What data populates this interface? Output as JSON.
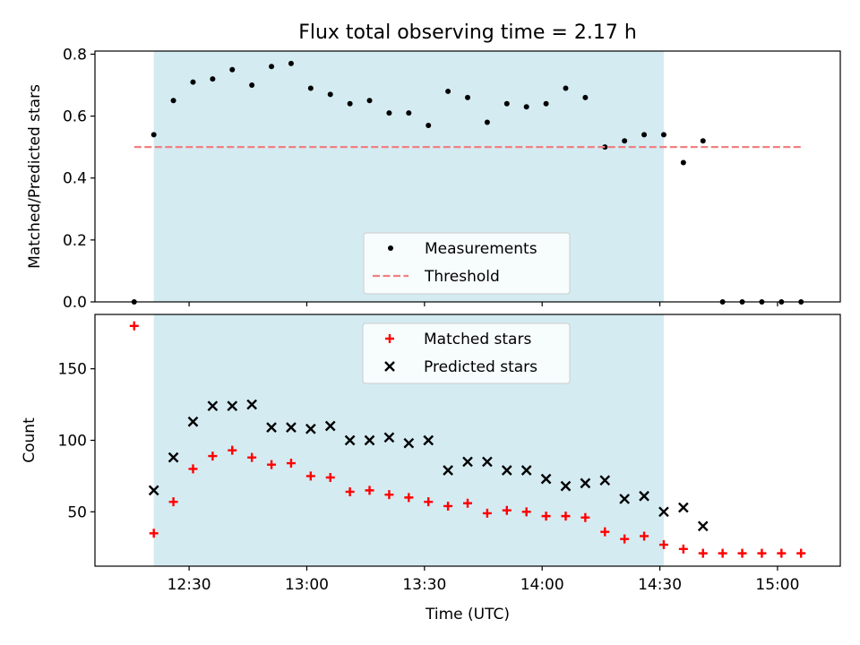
{
  "chart_data": [
    {
      "type": "scatter",
      "title": "Flux total observing time = 2.17 h",
      "xlabel": "",
      "ylabel": "Matched/Predicted stars",
      "ylim": [
        0,
        0.81
      ],
      "yticks": [
        0.0,
        0.2,
        0.4,
        0.6,
        0.8
      ],
      "ytick_labels": [
        "0.0",
        "0.2",
        "0.4",
        "0.6",
        "0.8"
      ],
      "grid": false,
      "legend_position": "lower-center",
      "shaded_interval": [
        "12:21",
        "14:31"
      ],
      "shade_color": "#add8e6",
      "series": [
        {
          "name": "Measurements",
          "marker": "dot",
          "color": "#000000",
          "x": [
            "12:16",
            "12:21",
            "12:26",
            "12:31",
            "12:36",
            "12:41",
            "12:46",
            "12:51",
            "12:56",
            "13:01",
            "13:06",
            "13:11",
            "13:16",
            "13:21",
            "13:26",
            "13:31",
            "13:36",
            "13:41",
            "13:46",
            "13:51",
            "13:56",
            "14:01",
            "14:06",
            "14:11",
            "14:16",
            "14:21",
            "14:26",
            "14:31",
            "14:36",
            "14:41",
            "14:46",
            "14:51",
            "14:56",
            "15:01",
            "15:06"
          ],
          "y": [
            0.0,
            0.54,
            0.65,
            0.71,
            0.72,
            0.75,
            0.7,
            0.76,
            0.77,
            0.69,
            0.67,
            0.64,
            0.65,
            0.61,
            0.61,
            0.57,
            0.68,
            0.66,
            0.58,
            0.64,
            0.63,
            0.64,
            0.69,
            0.66,
            0.5,
            0.52,
            0.54,
            0.54,
            0.45,
            0.52,
            0.0,
            0.0,
            0.0,
            0.0,
            0.0
          ]
        },
        {
          "name": "Threshold",
          "marker": "dashed-line",
          "color": "#f08080",
          "x": [
            "12:16",
            "15:06"
          ],
          "y": [
            0.5,
            0.5
          ]
        }
      ]
    },
    {
      "type": "scatter",
      "title": "",
      "xlabel": "Time (UTC)",
      "ylabel": "Count",
      "ylim": [
        12,
        188
      ],
      "yticks": [
        50,
        100,
        150
      ],
      "ytick_labels": [
        "50",
        "100",
        "150"
      ],
      "xticks": [
        "12:30",
        "13:00",
        "13:30",
        "14:00",
        "14:30",
        "15:00"
      ],
      "xtick_labels": [
        "12:30",
        "13:00",
        "13:30",
        "14:00",
        "14:30",
        "15:00"
      ],
      "grid": false,
      "legend_position": "upper-center",
      "shaded_interval": [
        "12:21",
        "14:31"
      ],
      "shade_color": "#add8e6",
      "series": [
        {
          "name": "Matched stars",
          "marker": "plus",
          "color": "#ff0000",
          "x": [
            "12:16",
            "12:21",
            "12:26",
            "12:31",
            "12:36",
            "12:41",
            "12:46",
            "12:51",
            "12:56",
            "13:01",
            "13:06",
            "13:11",
            "13:16",
            "13:21",
            "13:26",
            "13:31",
            "13:36",
            "13:41",
            "13:46",
            "13:51",
            "13:56",
            "14:01",
            "14:06",
            "14:11",
            "14:16",
            "14:21",
            "14:26",
            "14:31",
            "14:36",
            "14:41",
            "14:46",
            "14:51",
            "14:56",
            "15:01",
            "15:06"
          ],
          "y": [
            180,
            35,
            57,
            80,
            89,
            93,
            88,
            83,
            84,
            75,
            74,
            64,
            65,
            62,
            60,
            57,
            54,
            56,
            49,
            51,
            50,
            47,
            47,
            46,
            36,
            31,
            33,
            27,
            24,
            21,
            21,
            21,
            21,
            21,
            21
          ]
        },
        {
          "name": "Predicted stars",
          "marker": "x",
          "color": "#000000",
          "x": [
            "12:21",
            "12:26",
            "12:31",
            "12:36",
            "12:41",
            "12:46",
            "12:51",
            "12:56",
            "13:01",
            "13:06",
            "13:11",
            "13:16",
            "13:21",
            "13:26",
            "13:31",
            "13:36",
            "13:41",
            "13:46",
            "13:51",
            "13:56",
            "14:01",
            "14:06",
            "14:11",
            "14:16",
            "14:21",
            "14:26",
            "14:31",
            "14:36",
            "14:41"
          ],
          "y": [
            65,
            88,
            113,
            124,
            124,
            125,
            109,
            109,
            108,
            110,
            100,
            100,
            102,
            98,
            100,
            79,
            85,
            85,
            79,
            79,
            73,
            68,
            70,
            72,
            59,
            61,
            50,
            53,
            40
          ]
        }
      ]
    }
  ]
}
